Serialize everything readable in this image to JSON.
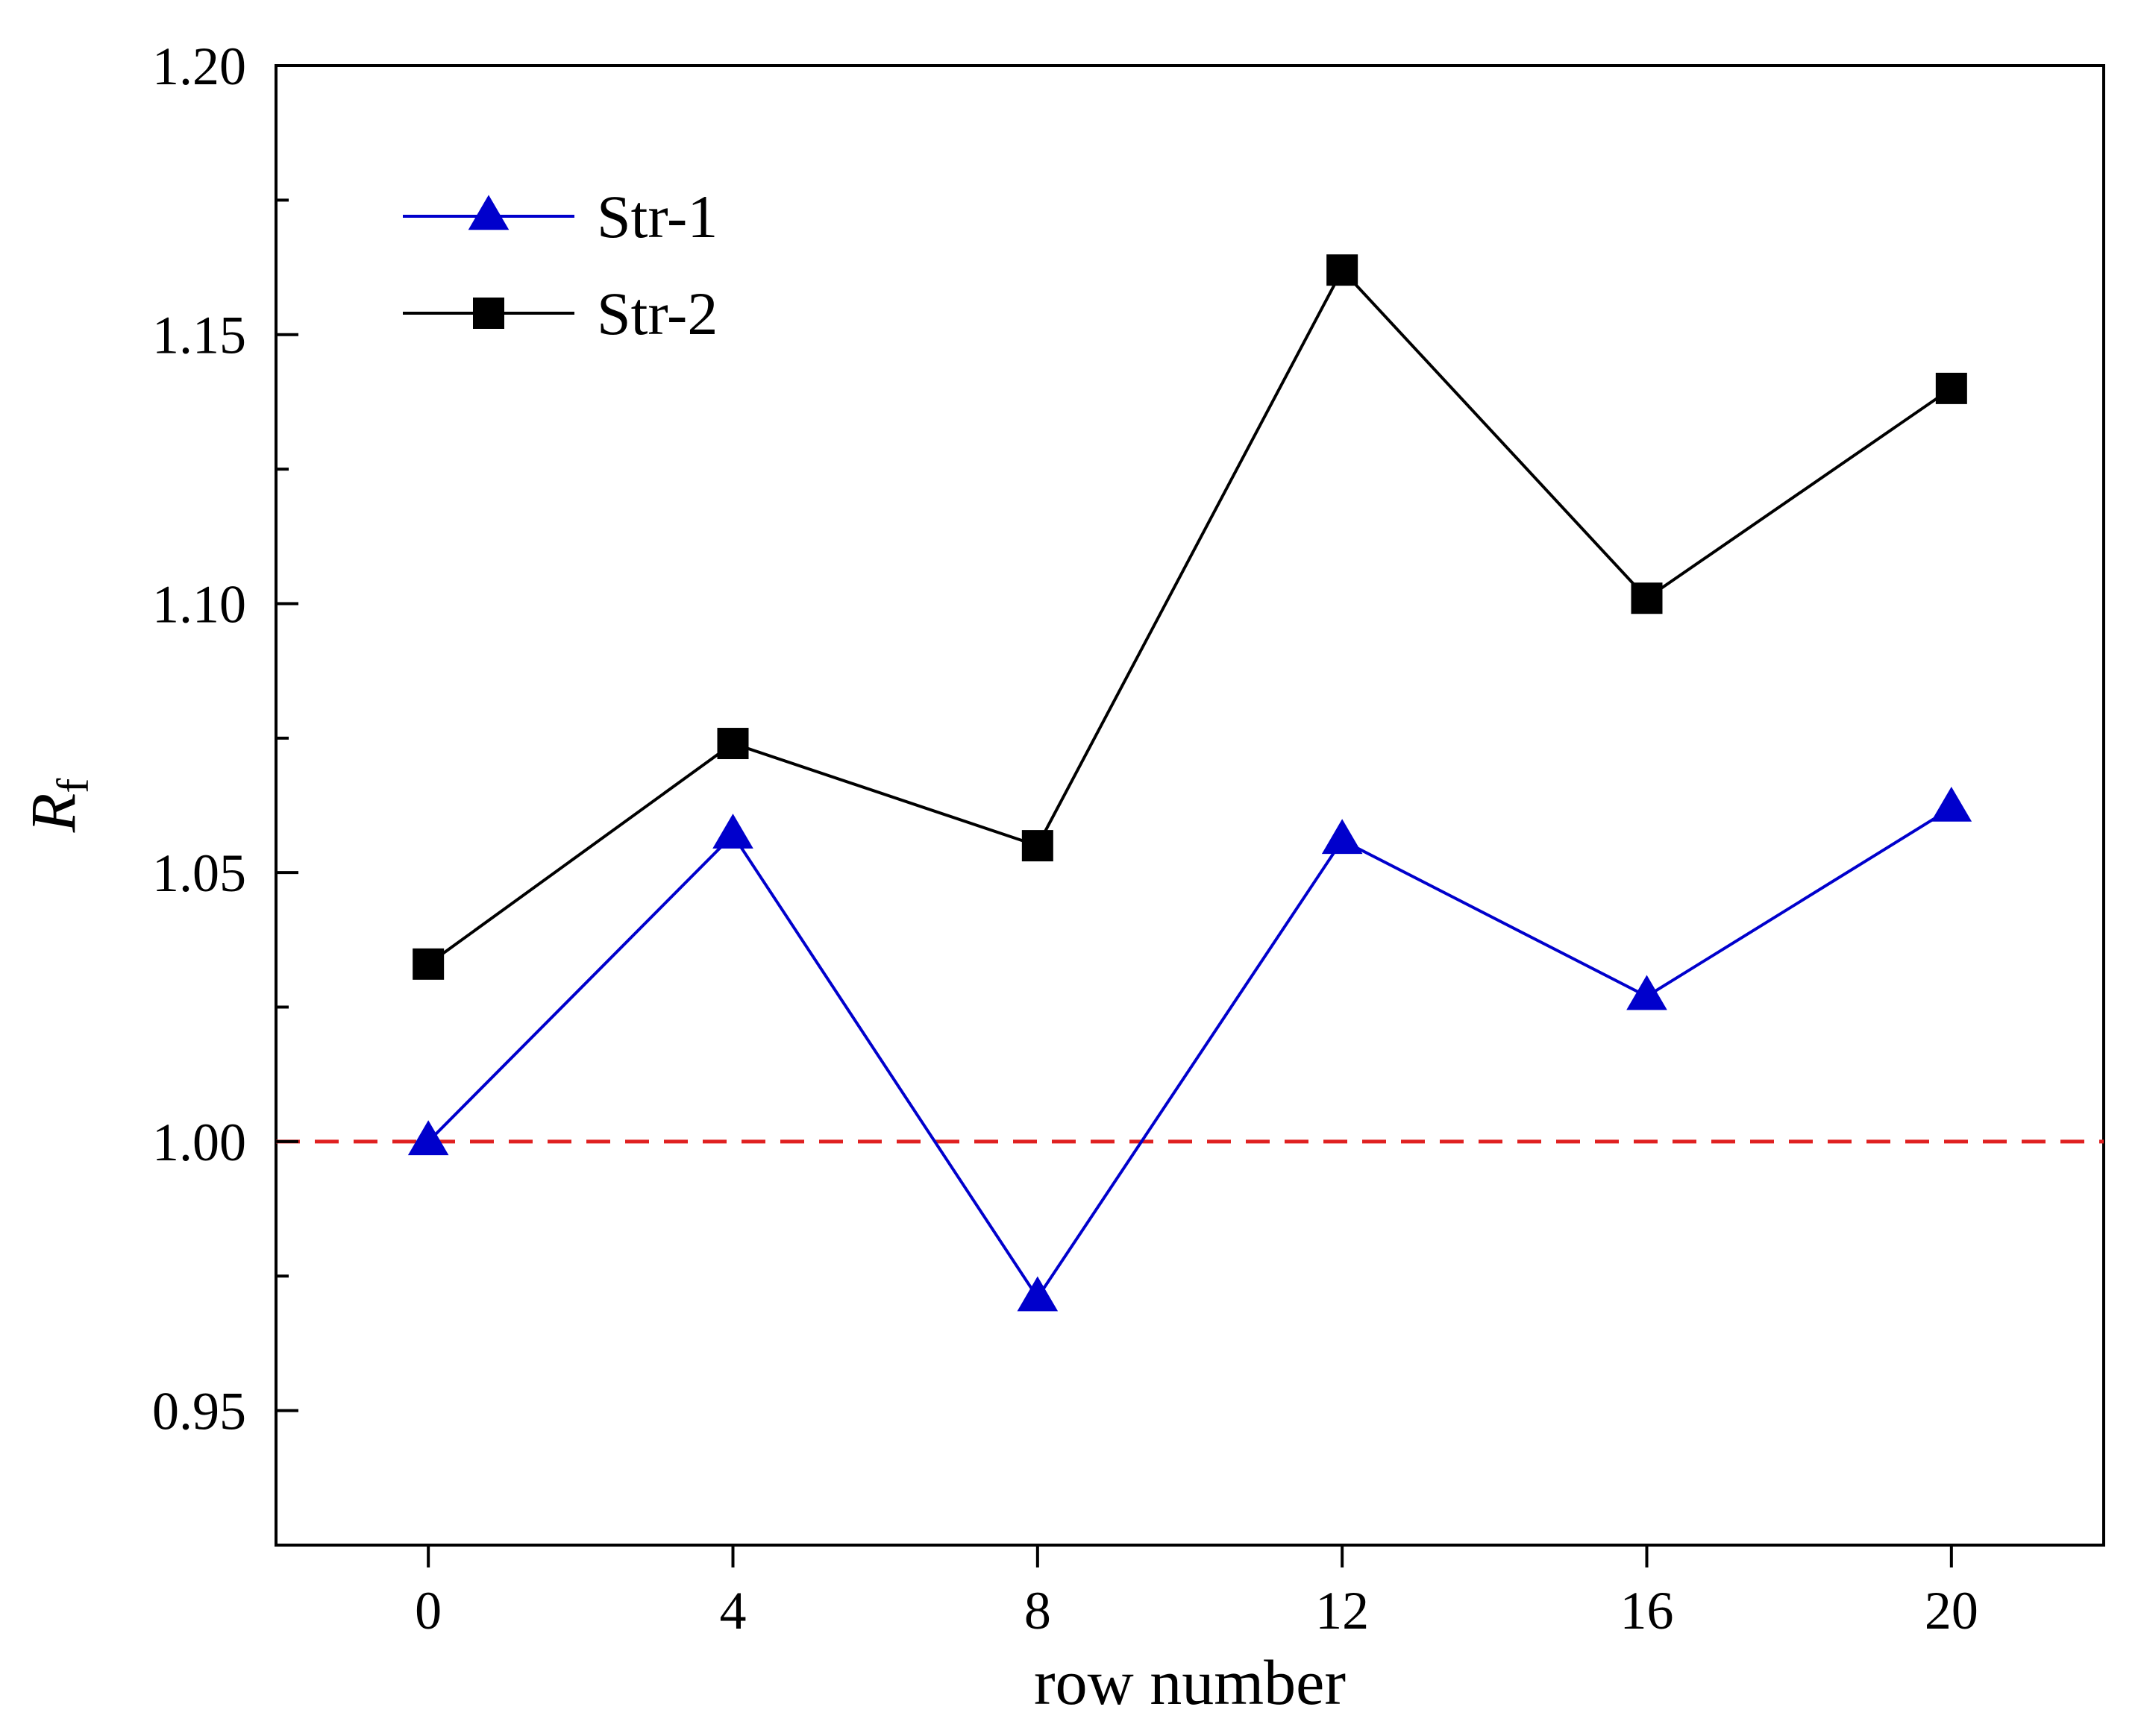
{
  "chart_data": {
    "type": "line",
    "title": "",
    "xlabel": "row number",
    "ylabel_main": "R",
    "ylabel_sub": "f",
    "x": [
      0,
      4,
      8,
      12,
      16,
      20
    ],
    "xlim": [
      -2,
      22
    ],
    "ylim": [
      0.925,
      1.2
    ],
    "x_ticks": [
      0,
      4,
      8,
      12,
      16,
      20
    ],
    "x_tick_labels": [
      "0",
      "4",
      "8",
      "12",
      "16",
      "20"
    ],
    "y_major_ticks": [
      0.95,
      1.0,
      1.05,
      1.1,
      1.15,
      1.2
    ],
    "y_tick_labels": [
      "0.95",
      "1.00",
      "1.05",
      "1.10",
      "1.15",
      "1.20"
    ],
    "y_minor_ticks": [
      0.975,
      1.025,
      1.075,
      1.125,
      1.175
    ],
    "grid": false,
    "legend_position": "top-left",
    "series": [
      {
        "name": "Str-1",
        "marker": "triangle",
        "color": "#0000cc",
        "values": [
          1.0,
          1.057,
          0.971,
          1.056,
          1.027,
          1.062
        ]
      },
      {
        "name": "Str-2",
        "marker": "square",
        "color": "#000000",
        "values": [
          1.033,
          1.074,
          1.055,
          1.162,
          1.101,
          1.14
        ]
      }
    ],
    "reference_line": {
      "y": 1.0,
      "style": "dashed",
      "color": "#e02020"
    }
  }
}
